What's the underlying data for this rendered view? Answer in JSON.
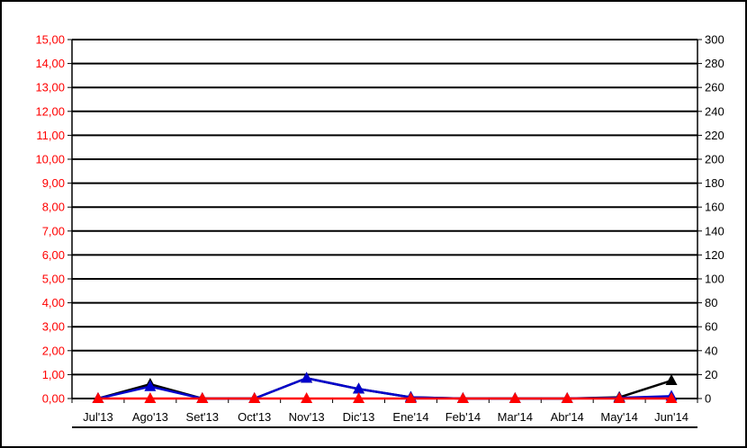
{
  "chart_data": {
    "type": "line",
    "categories": [
      "Jul'13",
      "Ago'13",
      "Set'13",
      "Oct'13",
      "Nov'13",
      "Dic'13",
      "Ene'14",
      "Feb'14",
      "Mar'14",
      "Abr'14",
      "May'14",
      "Jun'14"
    ],
    "left_axis": {
      "range": [
        0,
        15
      ],
      "ticks": [
        "0,00",
        "1,00",
        "2,00",
        "3,00",
        "4,00",
        "5,00",
        "6,00",
        "7,00",
        "8,00",
        "9,00",
        "10,00",
        "11,00",
        "12,00",
        "13,00",
        "14,00",
        "15,00"
      ],
      "color": "#ff0000"
    },
    "right_axis": {
      "range": [
        0,
        300
      ],
      "ticks": [
        "0",
        "20",
        "40",
        "60",
        "80",
        "100",
        "120",
        "140",
        "160",
        "180",
        "200",
        "220",
        "240",
        "260",
        "280",
        "300"
      ],
      "color": "#000000"
    },
    "grid": true,
    "series": [
      {
        "axis": "right",
        "color": "#000000",
        "marker": "triangle",
        "values": [
          0,
          12,
          0,
          0,
          17,
          8,
          1,
          0,
          0,
          0,
          1,
          15
        ]
      },
      {
        "axis": "left",
        "color": "#0000cc",
        "marker": "triangle",
        "values": [
          0,
          0.5,
          0,
          0,
          0.85,
          0.4,
          0.05,
          0,
          0,
          0,
          0.03,
          0.1
        ]
      },
      {
        "axis": "left",
        "color": "#ff0000",
        "marker": "triangle",
        "values": [
          0,
          0,
          0,
          0,
          0,
          0,
          0,
          0,
          0,
          0,
          0,
          0
        ]
      }
    ]
  }
}
